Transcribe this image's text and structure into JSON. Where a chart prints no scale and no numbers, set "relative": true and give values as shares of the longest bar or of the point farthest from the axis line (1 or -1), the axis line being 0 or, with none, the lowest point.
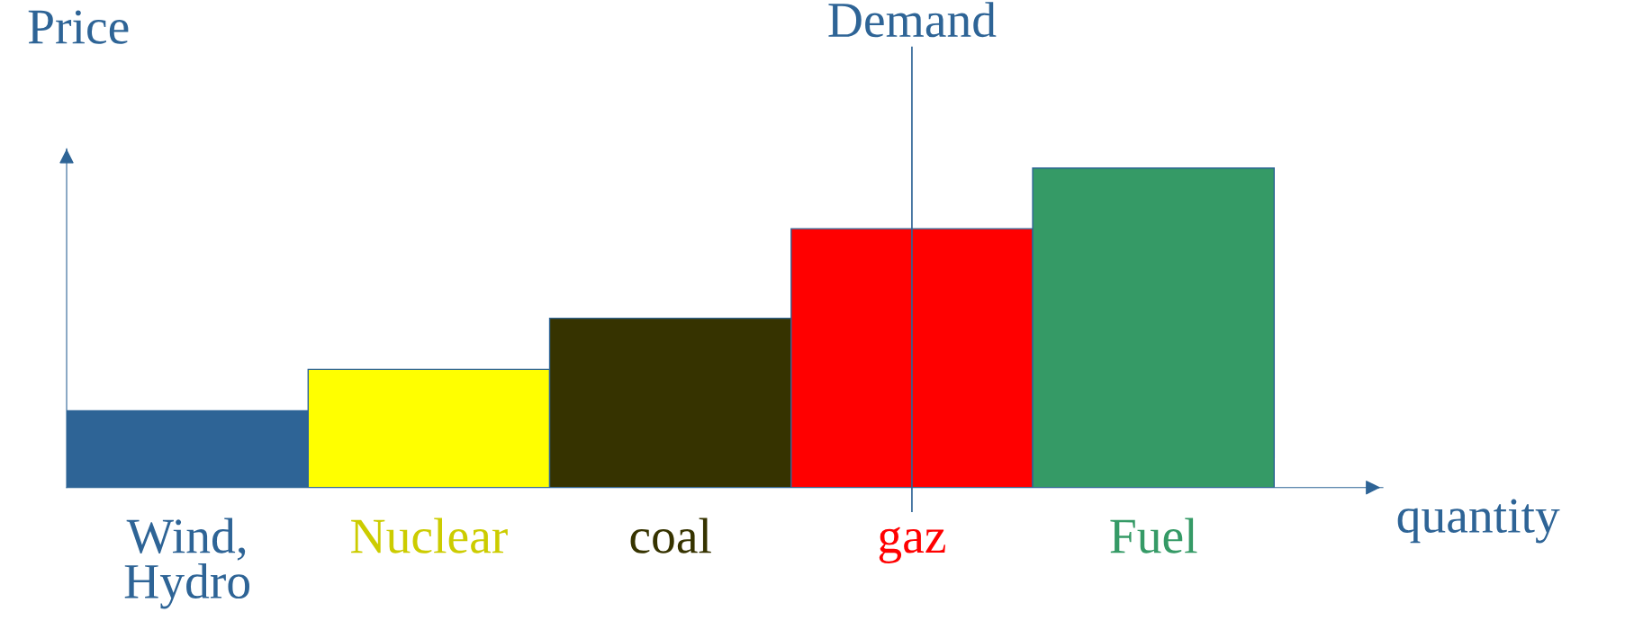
{
  "chart_data": {
    "type": "bar",
    "relative": true,
    "xlabel": "quantity",
    "ylabel": "Price",
    "categories": [
      "Wind,\nHydro",
      "Nuclear",
      "coal",
      "gaz",
      "Fuel"
    ],
    "values": [
      0.24,
      0.37,
      0.53,
      0.81,
      1
    ],
    "colors": [
      "#2e6496",
      "#ffff00",
      "#363300",
      "#ff0000",
      "#359a66"
    ],
    "ref_lines": [
      {
        "axis": "x",
        "value": "gaz",
        "label": "Demand",
        "color": "#2e6496"
      }
    ],
    "legend": false
  }
}
